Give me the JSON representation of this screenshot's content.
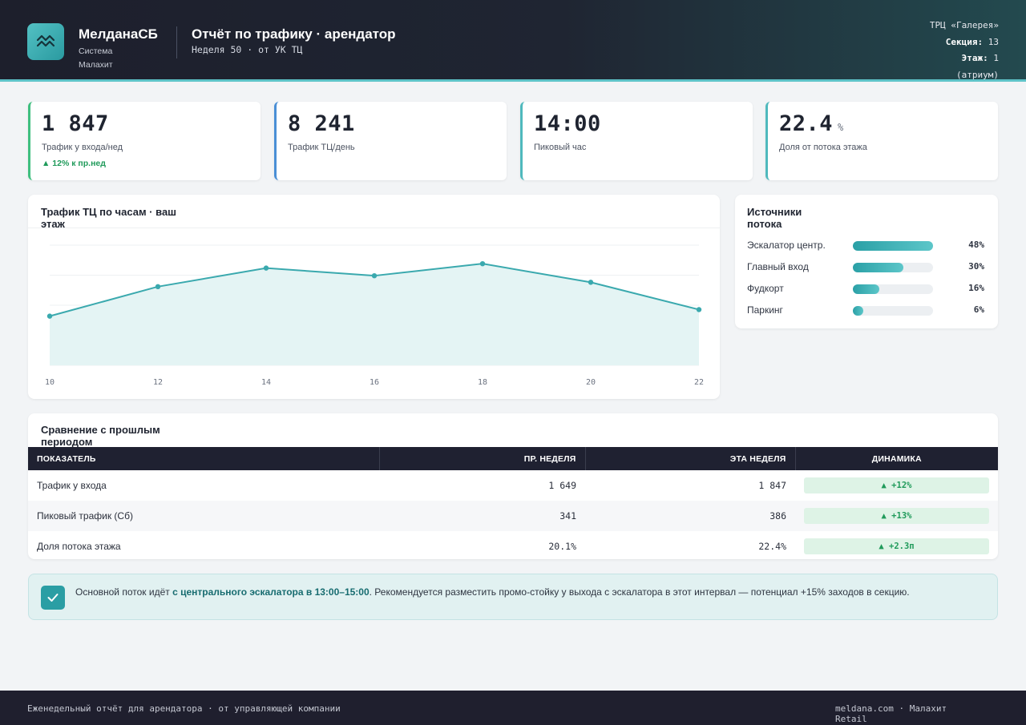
{
  "header": {
    "brand_name": "МелданаСБ",
    "brand_sub": "Система Малахит",
    "report_title": "Отчёт по трафику · арендатор",
    "report_sub": "Неделя 50 · от УК ТЦ",
    "mall": "ТРЦ «Галерея»",
    "section_label": "Секция:",
    "section_value": "13",
    "floor_label": "Этаж:",
    "floor_value": "1",
    "floor_note": "(атриум)"
  },
  "kpis": [
    {
      "value": "1 847",
      "unit": "",
      "label": "Трафик у входа/нед",
      "delta": "▲ 12% к пр.нед"
    },
    {
      "value": "8 241",
      "unit": "",
      "label": "Трафик ТЦ/день",
      "delta": ""
    },
    {
      "value": "14:00",
      "unit": "",
      "label": "Пиковый час",
      "delta": ""
    },
    {
      "value": "22.4",
      "unit": "%",
      "label": "Доля от потока этажа",
      "delta": ""
    }
  ],
  "colors": {
    "accent": "#3aa9ae",
    "header_bg": "#1d1f2c",
    "positive": "#1f9a5a",
    "kpi_borders": [
      "#3fbf7f",
      "#4a8fd6",
      "#4fb9bd",
      "#4fb9bd"
    ]
  },
  "chart_data": {
    "type": "area",
    "title": "Трафик ТЦ по часам · ваш этаж",
    "x": [
      10,
      12,
      14,
      16,
      18,
      20,
      22
    ],
    "values": [
      45,
      72,
      89,
      82,
      93,
      76,
      51
    ],
    "ylim": [
      0,
      110
    ],
    "grid": true,
    "xlabel": "",
    "ylabel": ""
  },
  "sources": {
    "title": "Источники потока",
    "items": [
      {
        "name": "Эскалатор центр.",
        "pct": 48,
        "label": "48%"
      },
      {
        "name": "Главный вход",
        "pct": 30,
        "label": "30%"
      },
      {
        "name": "Фудкорт",
        "pct": 16,
        "label": "16%"
      },
      {
        "name": "Паркинг",
        "pct": 6,
        "label": "6%"
      }
    ]
  },
  "comparison": {
    "title": "Сравнение с прошлым периодом",
    "headers": [
      "ПОКАЗАТЕЛЬ",
      "ПР. НЕДЕЛЯ",
      "ЭТА НЕДЕЛЯ",
      "ДИНАМИКА"
    ],
    "rows": [
      {
        "metric": "Трафик у входа",
        "prev": "1 649",
        "curr": "1 847",
        "delta": "▲ +12%"
      },
      {
        "metric": "Пиковый трафик (Сб)",
        "prev": "341",
        "curr": "386",
        "delta": "▲ +13%"
      },
      {
        "metric": "Доля потока этажа",
        "prev": "20.1%",
        "curr": "22.4%",
        "delta": "▲ +2.3п"
      }
    ]
  },
  "note": {
    "before": "Основной поток идёт ",
    "highlight": "с центрального эскалатора в 13:00–15:00",
    "after": ". Рекомендуется разместить промо-стойку у выхода с эскалатора в этот интервал — потенциал +15% заходов в секцию."
  },
  "footer": {
    "left": "Еженедельный отчёт для арендатора · от управляющей компании",
    "right": "meldana.com · Малахит Retail"
  }
}
